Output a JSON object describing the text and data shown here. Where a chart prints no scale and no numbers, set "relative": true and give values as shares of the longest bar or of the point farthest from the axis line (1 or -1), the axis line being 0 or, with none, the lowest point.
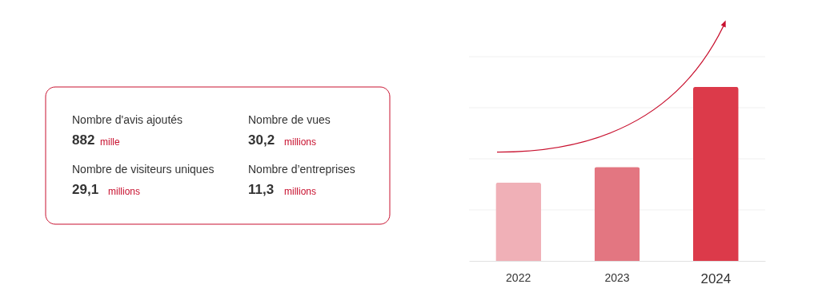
{
  "chart_data": [
    {
      "type": "other",
      "color": "#c8102e",
      "annotations": [
        "Nombre d'avis ajoutés",
        "882",
        "mille",
        "Nombre de vues",
        "30,2",
        "millions",
        "Nombre de visiteurs uniques",
        "29,1",
        "millions",
        "Nombre d’entreprises",
        "11,3",
        "millions"
      ]
    },
    {
      "type": "bar",
      "relative": true,
      "categories": [
        "2022",
        "2023",
        "2024"
      ],
      "values": [
        0.45,
        0.54,
        1
      ],
      "colors": [
        "#f0b0b7",
        "#e37681",
        "#dc3a4a"
      ],
      "grid": "y"
    }
  ]
}
